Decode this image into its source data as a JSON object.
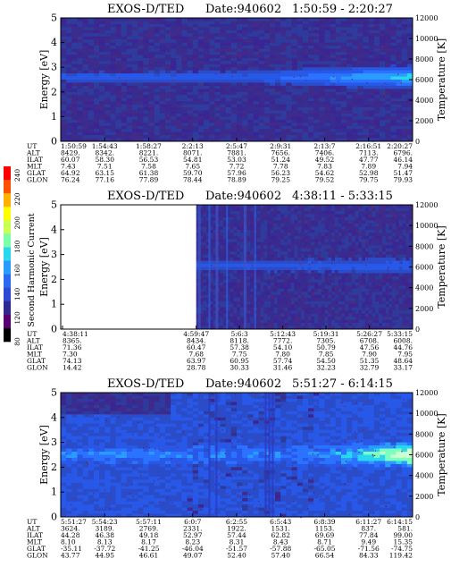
{
  "colorbar": {
    "label": "Second Harmonic Current",
    "ticks": [
      "240",
      "220",
      "200",
      "180",
      "160",
      "140",
      "120",
      "80"
    ],
    "colors": [
      "#000000",
      "#5a0070",
      "#2e2a90",
      "#2d4ad0",
      "#2a6af0",
      "#2a9cff",
      "#2ad8ee",
      "#7cffa8",
      "#c8ff50",
      "#ffff00",
      "#ffb000",
      "#ff5000",
      "#ff0000"
    ]
  },
  "chart_data": [
    {
      "type": "heatmap",
      "title": "EXOS-D/TED",
      "date_label": "Date:940602",
      "time_range": "1:50:59 - 2:20:27",
      "ylabel": "Energy [eV]",
      "y2label": "Temperature [K]",
      "ylim": [
        0,
        5
      ],
      "y2lim": [
        0,
        12000
      ],
      "yticks": [
        "0",
        "1",
        "2",
        "3",
        "4",
        "5"
      ],
      "y2ticks": [
        "0",
        "2000",
        "4000",
        "6000",
        "8000",
        "10000",
        "12000"
      ],
      "data_start_fraction": 0.0,
      "band": {
        "center_ev": 2.6,
        "bright_from": 0.55
      },
      "row_labels": [
        "UT",
        "ALT",
        "ILAT",
        "MLT",
        "GLAT",
        "GLON"
      ],
      "columns": [
        [
          "1:50:59",
          "8429.",
          "60.07",
          "7.43",
          "64.92",
          "76.24"
        ],
        [
          "1:54:43",
          "8342.",
          "58.30",
          "7.51",
          "63.15",
          "77.16"
        ],
        [
          "1:58:27",
          "8221.",
          "56.53",
          "7.58",
          "61.38",
          "77.89"
        ],
        [
          "2:2:13",
          "8071.",
          "54.81",
          "7.65",
          "59.70",
          "78.44"
        ],
        [
          "2:5:47",
          "7881.",
          "53.03",
          "7.72",
          "57.96",
          "78.89"
        ],
        [
          "2:9:31",
          "7656.",
          "51.24",
          "7.78",
          "56.23",
          "79.25"
        ],
        [
          "2:13:7",
          "7406.",
          "49.52",
          "7.83",
          "54.62",
          "79.52"
        ],
        [
          "2:16:51",
          "7113.",
          "47.77",
          "7.89",
          "52.98",
          "79.75"
        ],
        [
          "2:20:27",
          "6796.",
          "46.14",
          "7.94",
          "51.47",
          "79.93"
        ]
      ]
    },
    {
      "type": "heatmap",
      "title": "EXOS-D/TED",
      "date_label": "Date:940602",
      "time_range": "4:38:11 - 5:33:15",
      "ylabel": "Energy [eV]",
      "y2label": "Temperature [K]",
      "ylim": [
        0,
        5
      ],
      "y2lim": [
        0,
        12000
      ],
      "yticks": [
        "0",
        "1",
        "2",
        "3",
        "4",
        "5"
      ],
      "y2ticks": [
        "0",
        "2000",
        "4000",
        "6000",
        "8000",
        "10000",
        "12000"
      ],
      "data_start_fraction": 0.385,
      "band": {
        "center_ev": 2.55,
        "bright_from": 1.1
      },
      "row_labels": [
        "UT",
        "ALT",
        "ILAT",
        "MLT",
        "GLAT",
        "GLON"
      ],
      "columns": [
        [
          "4:38:11",
          "8365.",
          "71.36",
          "7.30",
          "74.13",
          "14.42"
        ],
        [
          "4:59:47",
          "8434.",
          "60.47",
          "7.68",
          "63.97",
          "28.78"
        ],
        [
          "5:6:3",
          "8118.",
          "57.38",
          "7.75",
          "60.95",
          "30.33"
        ],
        [
          "5:12:43",
          "7772.",
          "54.10",
          "7.80",
          "57.74",
          "31.46"
        ],
        [
          "5:19:31",
          "7305.",
          "50.79",
          "7.85",
          "54.50",
          "32.23"
        ],
        [
          "5:26:27",
          "6708.",
          "47.56",
          "7.90",
          "51.35",
          "32.79"
        ],
        [
          "5:33:15",
          "6008.",
          "44.76",
          "7.95",
          "48.64",
          "33.17"
        ]
      ]
    },
    {
      "type": "heatmap",
      "title": "EXOS-D/TED",
      "date_label": "Date:940602",
      "time_range": "5:51:27 - 6:14:15",
      "ylabel": "Energy [eV]",
      "y2label": "Temperature [K]",
      "ylim": [
        0,
        5
      ],
      "y2lim": [
        0,
        12000
      ],
      "yticks": [
        "0",
        "1",
        "2",
        "3",
        "4",
        "5"
      ],
      "y2ticks": [
        "0",
        "2000",
        "4000",
        "6000",
        "8000",
        "10000",
        "12000"
      ],
      "data_start_fraction": 0.0,
      "band": {
        "center_ev": 2.5,
        "bright_from": 0.75
      },
      "row_labels": [
        "UT",
        "ALT",
        "ILAT",
        "MLT",
        "GLAT",
        "GLON"
      ],
      "columns": [
        [
          "5:51:27",
          "3624.",
          "44.28",
          "8.10",
          "-35.11",
          "43.77"
        ],
        [
          "5:54:23",
          "3189.",
          "46.38",
          "8.13",
          "-37.72",
          "44.95"
        ],
        [
          "5:57:11",
          "2769.",
          "49.18",
          "8.17",
          "-41.25",
          "46.61"
        ],
        [
          "6:0:7",
          "2331.",
          "52.97",
          "8.23",
          "-46.04",
          "49.07"
        ],
        [
          "6:2:55",
          "1922.",
          "57.44",
          "8.31",
          "-51.57",
          "52.40"
        ],
        [
          "6:5:43",
          "1531.",
          "62.82",
          "8.43",
          "-57.88",
          "57.40"
        ],
        [
          "6:8:39",
          "1153.",
          "69.69",
          "8.71",
          "-65.05",
          "66.54"
        ],
        [
          "6:11:27",
          "837.",
          "77.84",
          "9.49",
          "-71.56",
          "84.33"
        ],
        [
          "6:14:15",
          "581.",
          "99.00",
          "15.35",
          "-74.75",
          "119.42"
        ]
      ]
    }
  ]
}
